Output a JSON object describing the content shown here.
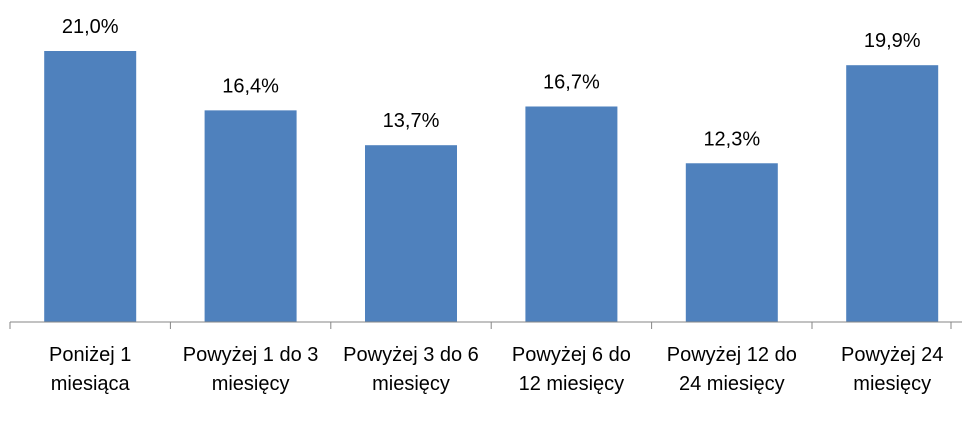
{
  "chart_data": {
    "type": "bar",
    "categories": [
      "Poniżej 1 miesiąca",
      "Powyżej 1 do 3 miesięcy",
      "Powyżej 3 do 6 miesięcy",
      "Powyżej 6 do 12 miesięcy",
      "Powyżej 12 do 24 miesięcy",
      "Powyżej 24 miesięcy"
    ],
    "values": [
      21.0,
      16.4,
      13.7,
      16.7,
      12.3,
      19.9
    ],
    "value_labels": [
      "21,0%",
      "16,4%",
      "13,7%",
      "16,7%",
      "12,3%",
      "19,9%"
    ],
    "color": "#4f81bd"
  }
}
